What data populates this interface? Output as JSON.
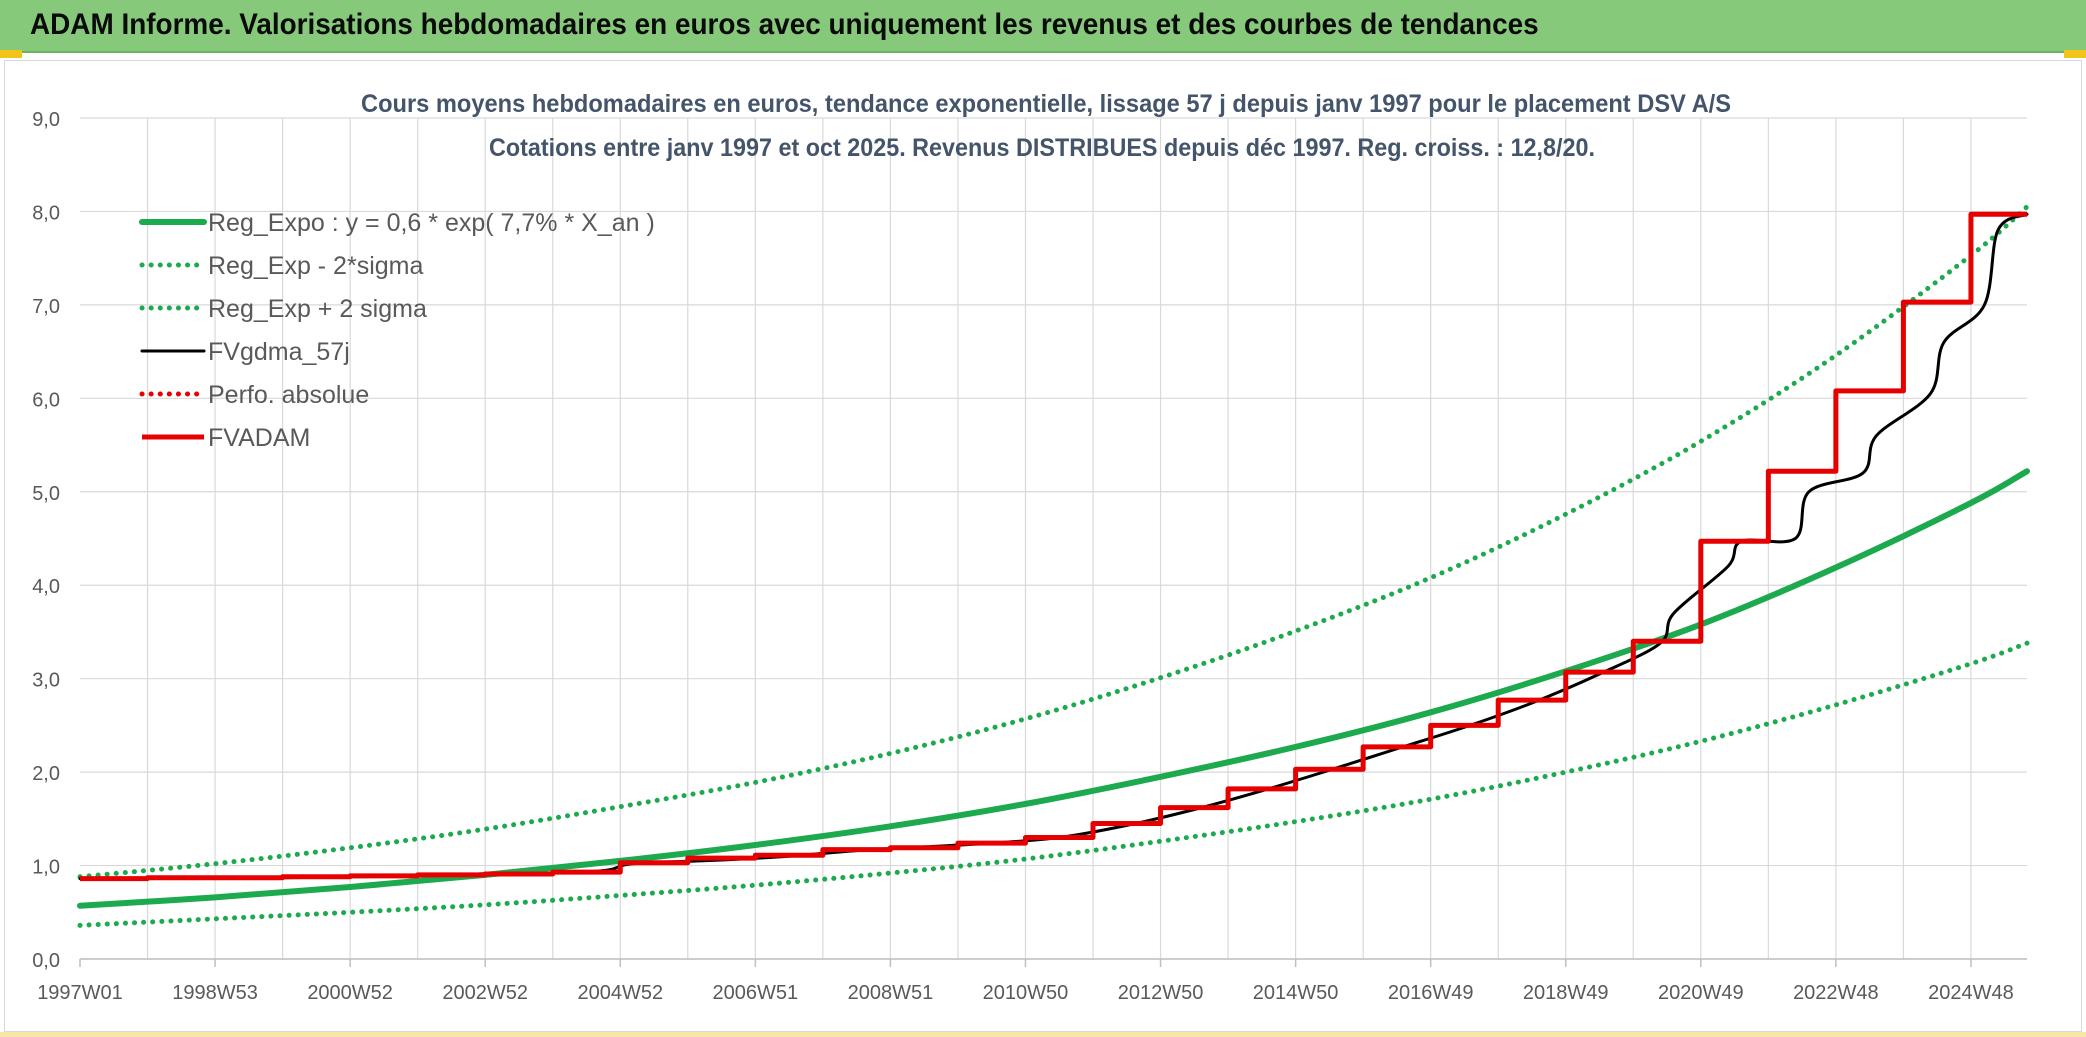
{
  "header": {
    "title": "ADAM Informe. Valorisations hebdomadaires en euros avec uniquement les revenus et des courbes de tendances"
  },
  "colors": {
    "header_bg": "#86c97a",
    "green": "#1daa4e",
    "black": "#000000",
    "red": "#e60000",
    "grid": "#d9d9d9",
    "axis_text": "#595959",
    "title_text": "#44546a"
  },
  "chart_data": {
    "type": "line",
    "title": "Cours moyens hebdomadaires en euros, tendance exponentielle, lissage 57 j depuis janv 1997 pour le placement DSV A/S",
    "subtitle": "Cotations entre janv 1997 et oct 2025. Revenus DISTRIBUES depuis déc 1997. Reg. croiss. : 12,8/20.",
    "xlabel": "",
    "ylabel": "",
    "ylim": [
      0,
      9
    ],
    "yticks": [
      "0,0",
      "1,0",
      "2,0",
      "3,0",
      "4,0",
      "5,0",
      "6,0",
      "7,0",
      "8,0",
      "9,0"
    ],
    "x_range_years": [
      1997.0,
      2025.83
    ],
    "xticks": [
      {
        "label": "1997W01",
        "year": 1997.0
      },
      {
        "label": "1998W53",
        "year": 1999.0
      },
      {
        "label": "2000W52",
        "year": 2001.0
      },
      {
        "label": "2002W52",
        "year": 2003.0
      },
      {
        "label": "2004W52",
        "year": 2005.0
      },
      {
        "label": "2006W51",
        "year": 2007.0
      },
      {
        "label": "2008W51",
        "year": 2009.0
      },
      {
        "label": "2010W50",
        "year": 2011.0
      },
      {
        "label": "2012W50",
        "year": 2013.0
      },
      {
        "label": "2014W50",
        "year": 2015.0
      },
      {
        "label": "2016W49",
        "year": 2017.0
      },
      {
        "label": "2018W49",
        "year": 2019.0
      },
      {
        "label": "2020W49",
        "year": 2021.0
      },
      {
        "label": "2022W48",
        "year": 2023.0
      },
      {
        "label": "2024W48",
        "year": 2025.0
      }
    ],
    "grid": true,
    "legend_position": "top-left",
    "series": [
      {
        "name": "Reg_Expo : y = 0,6 * exp( 7,7% *  X_an )",
        "style": "solid-thick",
        "color": "#1daa4e",
        "x": [
          1997.0,
          1999.0,
          2001.0,
          2003.0,
          2005.0,
          2007.0,
          2009.0,
          2011.0,
          2013.0,
          2015.0,
          2017.0,
          2019.0,
          2021.0,
          2023.0,
          2025.0,
          2025.83
        ],
        "y": [
          0.57,
          0.66,
          0.77,
          0.9,
          1.05,
          1.22,
          1.42,
          1.66,
          1.95,
          2.27,
          2.64,
          3.08,
          3.58,
          4.19,
          4.88,
          5.22
        ]
      },
      {
        "name": "Reg_Exp - 2*sigma",
        "style": "dotted",
        "color": "#1daa4e",
        "x": [
          1997.0,
          1999.0,
          2001.0,
          2003.0,
          2005.0,
          2007.0,
          2009.0,
          2011.0,
          2013.0,
          2015.0,
          2017.0,
          2019.0,
          2021.0,
          2023.0,
          2025.0,
          2025.83
        ],
        "y": [
          0.36,
          0.43,
          0.5,
          0.58,
          0.68,
          0.79,
          0.92,
          1.07,
          1.26,
          1.47,
          1.71,
          2.0,
          2.33,
          2.72,
          3.16,
          3.38
        ]
      },
      {
        "name": "Reg_Exp + 2 sigma",
        "style": "dotted",
        "color": "#1daa4e",
        "x": [
          1997.0,
          1999.0,
          2001.0,
          2003.0,
          2005.0,
          2007.0,
          2009.0,
          2011.0,
          2013.0,
          2015.0,
          2017.0,
          2019.0,
          2021.0,
          2023.0,
          2025.0,
          2025.83
        ],
        "y": [
          0.88,
          1.02,
          1.19,
          1.39,
          1.63,
          1.89,
          2.2,
          2.57,
          3.01,
          3.51,
          4.08,
          4.76,
          5.54,
          6.46,
          7.53,
          8.05
        ]
      },
      {
        "name": "FVgdma_57j",
        "style": "solid",
        "color": "#000000",
        "x": [
          1997.0,
          2000.0,
          2002.0,
          2004.0,
          2004.8,
          2005.2,
          2006.5,
          2007.5,
          2008.5,
          2009.5,
          2010.5,
          2011.5,
          2012.5,
          2013.5,
          2014.5,
          2015.5,
          2016.5,
          2017.5,
          2018.5,
          2019.5,
          2020.4,
          2020.6,
          2021.4,
          2021.6,
          2022.4,
          2022.6,
          2023.4,
          2023.6,
          2024.4,
          2024.6,
          2025.2,
          2025.4,
          2025.83
        ],
        "y": [
          0.86,
          0.87,
          0.89,
          0.92,
          0.95,
          1.02,
          1.06,
          1.1,
          1.16,
          1.2,
          1.24,
          1.3,
          1.43,
          1.6,
          1.8,
          2.02,
          2.25,
          2.48,
          2.74,
          3.05,
          3.38,
          3.7,
          4.2,
          4.47,
          4.5,
          5.0,
          5.2,
          5.6,
          6.05,
          6.6,
          7.0,
          7.8,
          7.97
        ]
      },
      {
        "name": "Perfo. absolue",
        "style": "dotted",
        "color": "#e60000",
        "x": [
          1997.0,
          2025.83
        ],
        "y": [
          0.86,
          7.97
        ]
      },
      {
        "name": "FVADAM",
        "style": "step-thick",
        "color": "#e60000",
        "x": [
          1997.0,
          1998.0,
          1999.0,
          2000.0,
          2001.0,
          2002.0,
          2003.0,
          2004.0,
          2005.0,
          2006.0,
          2007.0,
          2008.0,
          2009.0,
          2010.0,
          2011.0,
          2012.0,
          2013.0,
          2014.0,
          2015.0,
          2016.0,
          2017.0,
          2018.0,
          2019.0,
          2020.0,
          2021.0,
          2022.0,
          2023.0,
          2024.0,
          2025.0
        ],
        "y": [
          0.86,
          0.87,
          0.87,
          0.88,
          0.89,
          0.9,
          0.91,
          0.93,
          1.03,
          1.08,
          1.11,
          1.17,
          1.19,
          1.24,
          1.3,
          1.45,
          1.62,
          1.82,
          2.03,
          2.27,
          2.5,
          2.77,
          3.07,
          3.4,
          4.47,
          5.22,
          6.08,
          7.03,
          7.97
        ],
        "x_end": 2025.83
      }
    ]
  }
}
